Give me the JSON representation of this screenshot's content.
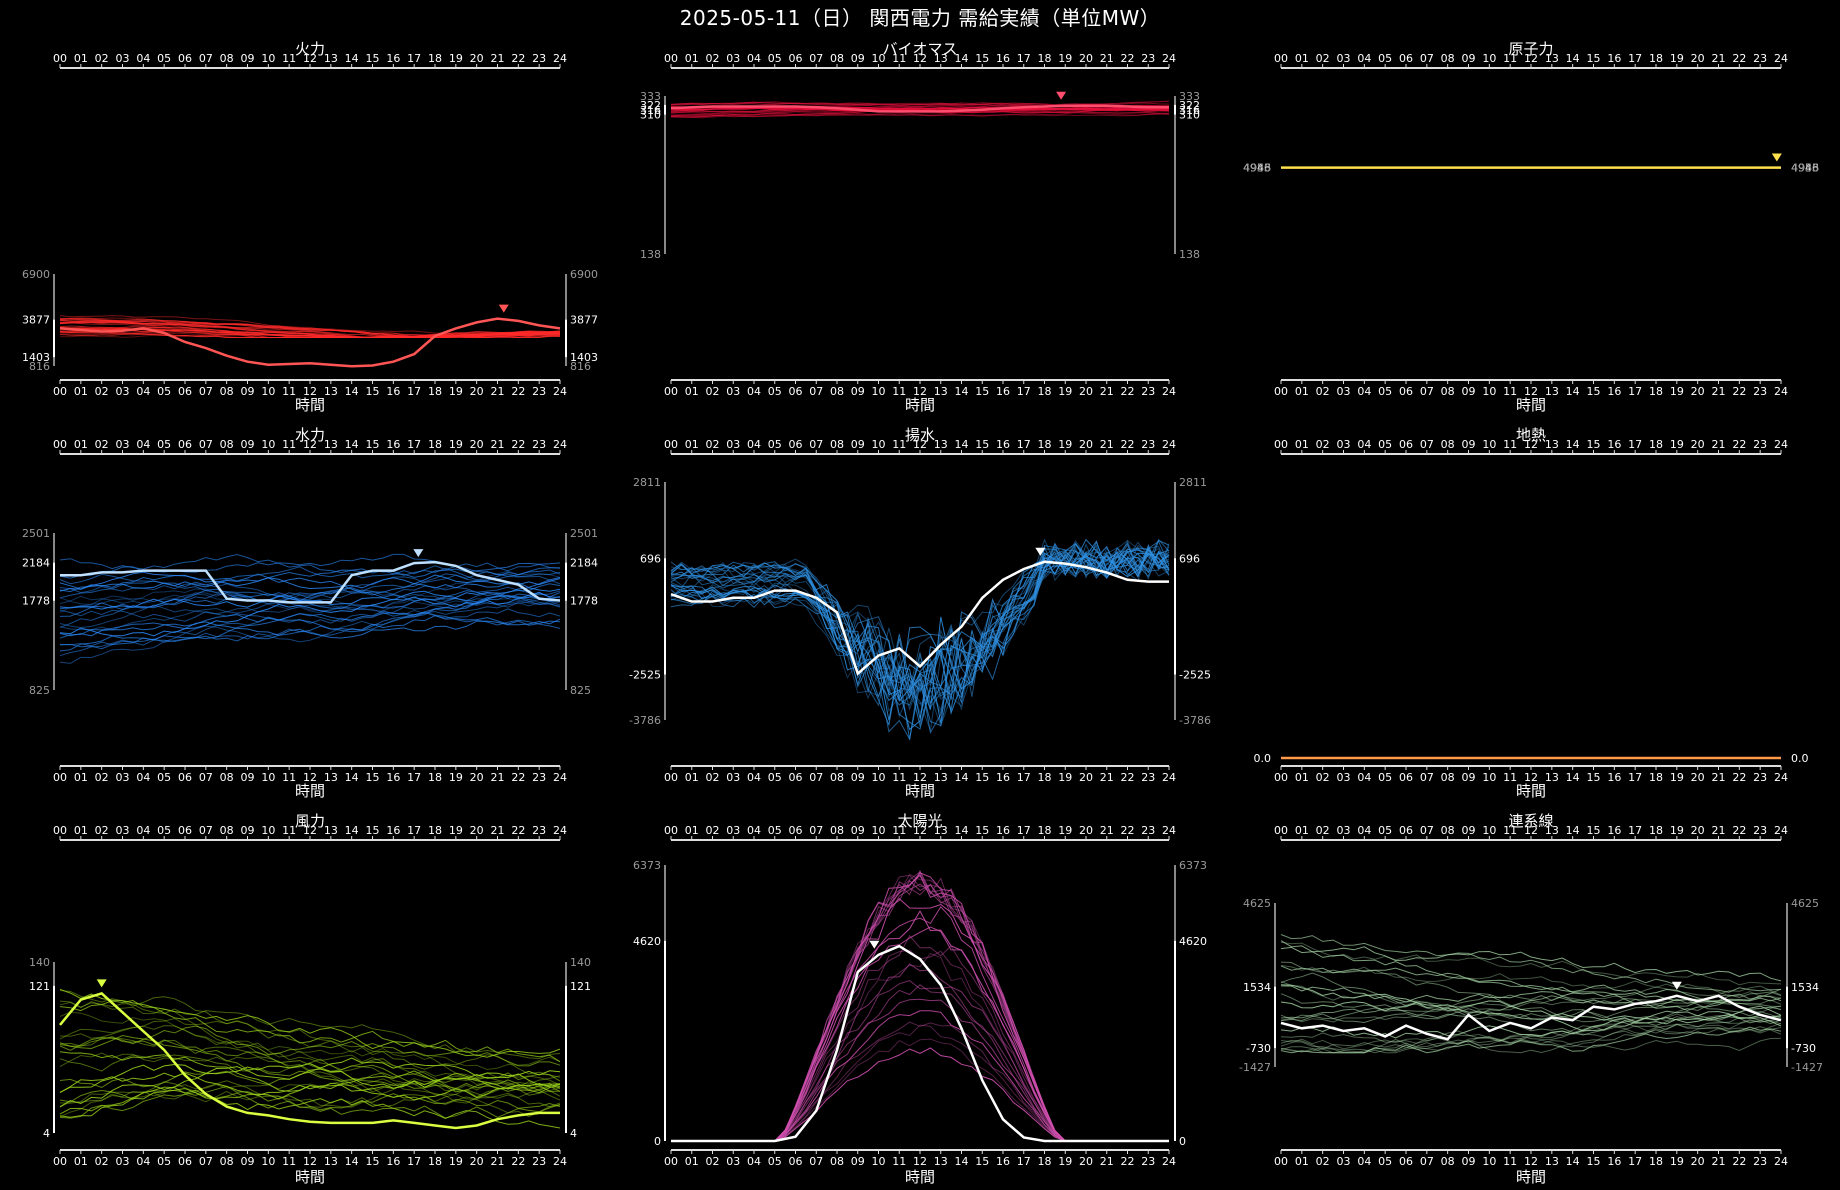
{
  "title": "2025-05-11（日） 関西電力 需給実績（単位MW）",
  "hours": [
    "00",
    "01",
    "02",
    "03",
    "04",
    "05",
    "06",
    "07",
    "08",
    "09",
    "10",
    "11",
    "12",
    "13",
    "14",
    "15",
    "16",
    "17",
    "18",
    "19",
    "20",
    "21",
    "22",
    "23",
    "24"
  ],
  "xlabel": "時間",
  "chart_data": [
    {
      "type": "line",
      "title": "火力",
      "color": "#ff2a2a",
      "highlight": "#ff5555",
      "marker_hour": 21.3,
      "ylim": [
        816,
        6900
      ],
      "ticks": [
        6900,
        3877,
        1403,
        816
      ],
      "ticks_bright": [
        3877,
        1403
      ],
      "today": [
        3300,
        3200,
        3100,
        3150,
        3300,
        3000,
        2400,
        2000,
        1500,
        1100,
        900,
        950,
        1000,
        900,
        800,
        850,
        1100,
        1600,
        2800,
        3300,
        3700,
        3950,
        3800,
        3500,
        3300
      ],
      "band": [
        2700,
        4300
      ],
      "n_lines": 26
    },
    {
      "type": "line",
      "title": "バイオマス",
      "color": "#e8103c",
      "highlight": "#ff4d6d",
      "marker_hour": 18.8,
      "ylim": [
        138,
        333
      ],
      "ticks": [
        333,
        322,
        316,
        310,
        138
      ],
      "ticks_bright": [
        322,
        316,
        310
      ],
      "today": [
        318,
        319,
        320,
        320,
        320,
        320,
        320,
        319,
        318,
        316,
        314,
        314,
        314,
        314,
        315,
        316,
        318,
        319,
        320,
        321,
        321,
        321,
        320,
        319,
        319
      ],
      "band": [
        305,
        330
      ],
      "n_lines": 22
    },
    {
      "type": "line",
      "title": "原子力",
      "color": "#f2d02a",
      "highlight": "#ffe14d",
      "marker_hour": 23.8,
      "ylim": [
        3000,
        7000
      ],
      "ticks": [
        4953,
        4946,
        4938,
        4955
      ],
      "ticks_bright": [
        4953,
        4946
      ],
      "today": [
        4950,
        4951,
        4950,
        4949,
        4950,
        4950,
        4951,
        4950,
        4950,
        4951,
        4950,
        4950,
        4950,
        4951,
        4950,
        4950,
        4950,
        4951,
        4950,
        4950,
        4951,
        4950,
        4950,
        4950,
        4951
      ],
      "band": [
        4930,
        4955
      ],
      "n_lines": 6
    },
    {
      "type": "line",
      "title": "水力",
      "color": "#2b8cff",
      "highlight": "#bfe0ff",
      "marker_hour": 17.2,
      "ylim": [
        825,
        2501
      ],
      "ticks": [
        2501,
        2184,
        1778,
        825
      ],
      "ticks_bright": [
        2184,
        1778
      ],
      "today": [
        2050,
        2050,
        2080,
        2080,
        2100,
        2100,
        2100,
        2100,
        1800,
        1780,
        1780,
        1760,
        1760,
        1760,
        2050,
        2100,
        2100,
        2180,
        2190,
        2150,
        2050,
        2000,
        1950,
        1800,
        1780
      ],
      "band": [
        1100,
        2300
      ],
      "n_lines": 26
    },
    {
      "type": "line",
      "title": "揚水",
      "color": "#2f8fe0",
      "highlight": "#ffffff",
      "marker_hour": 17.8,
      "ylim": [
        -3786,
        2811
      ],
      "ticks": [
        2811,
        696,
        -2525,
        -3786
      ],
      "ticks_bright": [
        696,
        -2525
      ],
      "today": [
        -300,
        -500,
        -500,
        -400,
        -400,
        -200,
        -200,
        -400,
        -800,
        -2500,
        -2000,
        -1800,
        -2300,
        -1700,
        -1200,
        -400,
        100,
        400,
        600,
        550,
        450,
        300,
        100,
        50,
        50
      ],
      "band": [
        -3600,
        700
      ],
      "n_lines": 26
    },
    {
      "type": "line",
      "title": "地熱",
      "color": "#ff7a1a",
      "highlight": "#ff9a4a",
      "marker_hour": null,
      "ylim": [
        0,
        1
      ],
      "ticks": [
        0.0
      ],
      "ticks_bright": [
        0.0
      ],
      "today": [
        0,
        0,
        0,
        0,
        0,
        0,
        0,
        0,
        0,
        0,
        0,
        0,
        0,
        0,
        0,
        0,
        0,
        0,
        0,
        0,
        0,
        0,
        0,
        0,
        0
      ],
      "band": [
        0,
        0
      ],
      "n_lines": 3
    },
    {
      "type": "line",
      "title": "風力",
      "color": "#9ad41a",
      "highlight": "#d9ff40",
      "marker_hour": 2.0,
      "ylim": [
        4,
        140
      ],
      "ticks": [
        140,
        121,
        4
      ],
      "ticks_bright": [
        121,
        4
      ],
      "today": [
        90,
        110,
        115,
        100,
        85,
        70,
        50,
        35,
        25,
        20,
        18,
        15,
        13,
        12,
        12,
        12,
        14,
        12,
        10,
        8,
        10,
        15,
        18,
        20,
        20
      ],
      "band": [
        8,
        125
      ],
      "n_lines": 26
    },
    {
      "type": "line",
      "title": "太陽光",
      "color": "#d04fb0",
      "highlight": "#ffffff",
      "marker_hour": 9.8,
      "ylim": [
        0,
        6373
      ],
      "ticks": [
        6373,
        4620,
        0
      ],
      "ticks_bright": [
        4620,
        0
      ],
      "today": [
        0,
        0,
        0,
        0,
        0,
        0,
        100,
        700,
        2100,
        3900,
        4300,
        4500,
        4200,
        3600,
        2600,
        1400,
        500,
        80,
        0,
        0,
        0,
        0,
        0,
        0,
        0
      ],
      "band": [
        0,
        6300
      ],
      "n_lines": 26
    },
    {
      "type": "line",
      "title": "連系線",
      "color": "#a9d9a9",
      "highlight": "#ffffff",
      "marker_hour": 19.0,
      "ylim": [
        -1427,
        4625
      ],
      "ticks": [
        4625,
        1534,
        -730,
        -1427
      ],
      "ticks_bright": [
        1534,
        -730
      ],
      "today": [
        200,
        0,
        100,
        -100,
        0,
        -300,
        100,
        -200,
        -400,
        500,
        -100,
        200,
        0,
        400,
        300,
        800,
        700,
        900,
        1000,
        1200,
        1000,
        1200,
        800,
        500,
        300
      ],
      "band": [
        -900,
        3500
      ],
      "n_lines": 26
    }
  ]
}
